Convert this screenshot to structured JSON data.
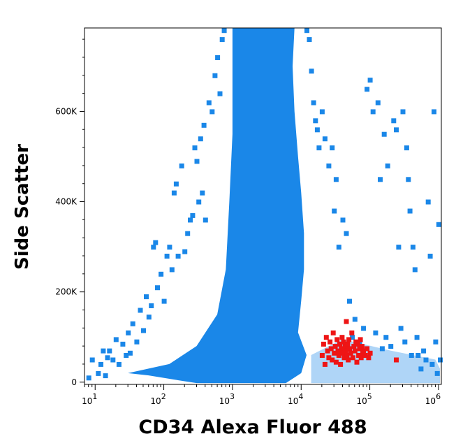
{
  "chart_data": {
    "type": "scatter",
    "title": "",
    "xlabel": "CD34 Alexa Fluor 488",
    "ylabel": "Side Scatter",
    "x_scale": "log",
    "xlim": [
      7,
      1100000
    ],
    "ylim": [
      -5000,
      785000
    ],
    "x_ticks": [
      {
        "value": 10,
        "base": "10",
        "exp": "1"
      },
      {
        "value": 100,
        "base": "10",
        "exp": "2"
      },
      {
        "value": 1000,
        "base": "10",
        "exp": "3"
      },
      {
        "value": 10000,
        "base": "10",
        "exp": "4"
      },
      {
        "value": 100000,
        "base": "10",
        "exp": "5"
      },
      {
        "value": 1000000,
        "base": "10",
        "exp": "6"
      }
    ],
    "y_ticks": [
      {
        "value": 0,
        "label": "0"
      },
      {
        "value": 200000,
        "label": "200K"
      },
      {
        "value": 400000,
        "label": "400K"
      },
      {
        "value": 600000,
        "label": "600K"
      }
    ],
    "grid": false,
    "legend": "none",
    "series": [
      {
        "color": "#1a87e8",
        "shape": "square",
        "points": [
          [
            8,
            10000
          ],
          [
            9,
            50000
          ],
          [
            11,
            20000
          ],
          [
            12,
            40000
          ],
          [
            13,
            70000
          ],
          [
            14,
            15000
          ],
          [
            15,
            55000
          ],
          [
            16,
            70000
          ],
          [
            18,
            50000
          ],
          [
            20,
            95000
          ],
          [
            22,
            40000
          ],
          [
            25,
            85000
          ],
          [
            28,
            60000
          ],
          [
            30,
            110000
          ],
          [
            32,
            65000
          ],
          [
            35,
            130000
          ],
          [
            40,
            90000
          ],
          [
            45,
            160000
          ],
          [
            50,
            115000
          ],
          [
            55,
            190000
          ],
          [
            60,
            145000
          ],
          [
            65,
            170000
          ],
          [
            70,
            300000
          ],
          [
            75,
            310000
          ],
          [
            80,
            210000
          ],
          [
            90,
            240000
          ],
          [
            100,
            180000
          ],
          [
            110,
            280000
          ],
          [
            120,
            300000
          ],
          [
            130,
            250000
          ],
          [
            140,
            420000
          ],
          [
            150,
            440000
          ],
          [
            160,
            280000
          ],
          [
            180,
            480000
          ],
          [
            200,
            290000
          ],
          [
            220,
            330000
          ],
          [
            240,
            360000
          ],
          [
            260,
            370000
          ],
          [
            280,
            520000
          ],
          [
            300,
            490000
          ],
          [
            320,
            400000
          ],
          [
            340,
            540000
          ],
          [
            360,
            420000
          ],
          [
            380,
            570000
          ],
          [
            400,
            360000
          ],
          [
            450,
            620000
          ],
          [
            500,
            600000
          ],
          [
            550,
            680000
          ],
          [
            600,
            720000
          ],
          [
            650,
            640000
          ],
          [
            700,
            760000
          ],
          [
            750,
            780000
          ],
          [
            12000,
            780000
          ],
          [
            13000,
            760000
          ],
          [
            14000,
            690000
          ],
          [
            15000,
            620000
          ],
          [
            16000,
            580000
          ],
          [
            17000,
            560000
          ],
          [
            18000,
            520000
          ],
          [
            20000,
            600000
          ],
          [
            22000,
            540000
          ],
          [
            25000,
            480000
          ],
          [
            28000,
            520000
          ],
          [
            30000,
            380000
          ],
          [
            32000,
            450000
          ],
          [
            35000,
            300000
          ],
          [
            40000,
            360000
          ],
          [
            45000,
            330000
          ],
          [
            50000,
            180000
          ],
          [
            55000,
            100000
          ],
          [
            60000,
            140000
          ],
          [
            70000,
            85000
          ],
          [
            80000,
            120000
          ],
          [
            90000,
            650000
          ],
          [
            100000,
            670000
          ],
          [
            110000,
            600000
          ],
          [
            120000,
            110000
          ],
          [
            130000,
            620000
          ],
          [
            140000,
            450000
          ],
          [
            150000,
            75000
          ],
          [
            160000,
            550000
          ],
          [
            170000,
            100000
          ],
          [
            180000,
            480000
          ],
          [
            200000,
            80000
          ],
          [
            220000,
            580000
          ],
          [
            240000,
            560000
          ],
          [
            260000,
            300000
          ],
          [
            280000,
            120000
          ],
          [
            300000,
            600000
          ],
          [
            320000,
            90000
          ],
          [
            340000,
            520000
          ],
          [
            360000,
            450000
          ],
          [
            380000,
            380000
          ],
          [
            400000,
            60000
          ],
          [
            420000,
            300000
          ],
          [
            450000,
            250000
          ],
          [
            480000,
            100000
          ],
          [
            500000,
            60000
          ],
          [
            550000,
            30000
          ],
          [
            600000,
            70000
          ],
          [
            650000,
            50000
          ],
          [
            700000,
            400000
          ],
          [
            750000,
            280000
          ],
          [
            800000,
            40000
          ],
          [
            850000,
            600000
          ],
          [
            900000,
            90000
          ],
          [
            950000,
            20000
          ],
          [
            1000000,
            350000
          ],
          [
            1050000,
            50000
          ]
        ]
      },
      {
        "color": "#ee1515",
        "shape": "square",
        "points": [
          [
            20000,
            60000
          ],
          [
            21000,
            85000
          ],
          [
            22000,
            40000
          ],
          [
            23000,
            100000
          ],
          [
            24000,
            70000
          ],
          [
            25000,
            55000
          ],
          [
            26000,
            90000
          ],
          [
            27000,
            75000
          ],
          [
            28000,
            50000
          ],
          [
            29000,
            110000
          ],
          [
            30000,
            65000
          ],
          [
            31000,
            80000
          ],
          [
            32000,
            45000
          ],
          [
            33000,
            95000
          ],
          [
            34000,
            70000
          ],
          [
            35000,
            60000
          ],
          [
            36000,
            85000
          ],
          [
            37000,
            40000
          ],
          [
            38000,
            75000
          ],
          [
            39000,
            100000
          ],
          [
            40000,
            65000
          ],
          [
            41000,
            90000
          ],
          [
            42000,
            55000
          ],
          [
            43000,
            80000
          ],
          [
            44000,
            70000
          ],
          [
            45000,
            135000
          ],
          [
            46000,
            60000
          ],
          [
            47000,
            85000
          ],
          [
            48000,
            50000
          ],
          [
            49000,
            95000
          ],
          [
            50000,
            75000
          ],
          [
            52000,
            65000
          ],
          [
            54000,
            110000
          ],
          [
            56000,
            55000
          ],
          [
            58000,
            80000
          ],
          [
            60000,
            70000
          ],
          [
            62000,
            90000
          ],
          [
            64000,
            45000
          ],
          [
            66000,
            85000
          ],
          [
            68000,
            60000
          ],
          [
            70000,
            75000
          ],
          [
            72000,
            95000
          ],
          [
            74000,
            55000
          ],
          [
            76000,
            80000
          ],
          [
            78000,
            65000
          ],
          [
            80000,
            70000
          ],
          [
            85000,
            60000
          ],
          [
            90000,
            75000
          ],
          [
            95000,
            55000
          ],
          [
            100000,
            65000
          ],
          [
            240000,
            50000
          ]
        ]
      }
    ]
  }
}
